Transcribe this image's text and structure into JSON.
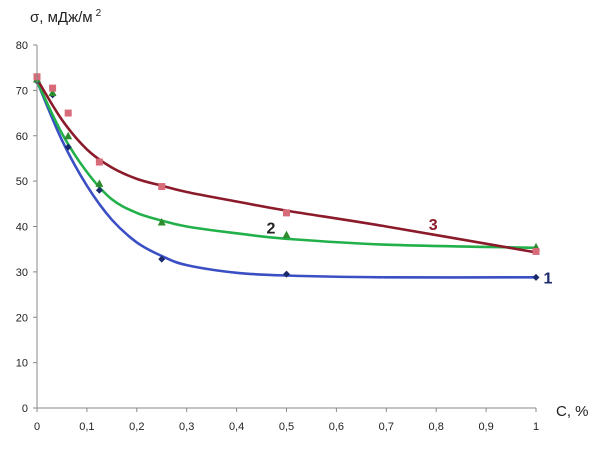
{
  "chart_data": {
    "type": "scatter",
    "ylabel": "σ, мДж/м",
    "ylabel_sup": "2",
    "xlabel": "C, %",
    "xlim": [
      0,
      1
    ],
    "ylim": [
      0,
      80
    ],
    "x_ticks": [
      0,
      0.1,
      0.2,
      0.3,
      0.4,
      0.5,
      0.6,
      0.7,
      0.8,
      0.9,
      1
    ],
    "x_tick_labels": [
      "0",
      "0,1",
      "0,2",
      "0,3",
      "0,4",
      "0,5",
      "0,6",
      "0,7",
      "0,8",
      "0,9",
      "1"
    ],
    "y_ticks": [
      0,
      10,
      20,
      30,
      40,
      50,
      60,
      70,
      80
    ],
    "y_tick_labels": [
      "0",
      "10",
      "20",
      "30",
      "40",
      "50",
      "60",
      "70",
      "80"
    ],
    "grid": false,
    "series": [
      {
        "name": "1",
        "color": "#3b4fc4",
        "marker": "diamond",
        "marker_color": "#1a2a6a",
        "points": [
          [
            0,
            72
          ],
          [
            0.03125,
            69
          ],
          [
            0.0625,
            57.5
          ],
          [
            0.125,
            48
          ],
          [
            0.25,
            32.8
          ],
          [
            0.5,
            29.5
          ],
          [
            1,
            28.8
          ]
        ],
        "curve": [
          [
            0,
            72
          ],
          [
            0.05,
            59
          ],
          [
            0.1,
            49
          ],
          [
            0.15,
            41.5
          ],
          [
            0.2,
            36.5
          ],
          [
            0.25,
            33.5
          ],
          [
            0.3,
            31.5
          ],
          [
            0.4,
            29.8
          ],
          [
            0.5,
            29.2
          ],
          [
            0.7,
            28.8
          ],
          [
            1,
            28.8
          ]
        ]
      },
      {
        "name": "2",
        "color": "#22b04a",
        "marker": "triangle",
        "marker_color": "#2e8b2e",
        "points": [
          [
            0,
            72.5
          ],
          [
            0.03125,
            69.5
          ],
          [
            0.0625,
            60
          ],
          [
            0.125,
            49.5
          ],
          [
            0.25,
            41
          ],
          [
            0.5,
            38.2
          ],
          [
            1,
            35.5
          ]
        ],
        "curve": [
          [
            0,
            72
          ],
          [
            0.05,
            60.5
          ],
          [
            0.1,
            52
          ],
          [
            0.15,
            46
          ],
          [
            0.2,
            43
          ],
          [
            0.25,
            41.3
          ],
          [
            0.3,
            40
          ],
          [
            0.4,
            38.5
          ],
          [
            0.5,
            37.3
          ],
          [
            0.7,
            36
          ],
          [
            1,
            35.3
          ]
        ]
      },
      {
        "name": "3",
        "color": "#8b1a2a",
        "marker": "square",
        "marker_color": "#d86b7a",
        "points": [
          [
            0,
            73
          ],
          [
            0.03125,
            70.5
          ],
          [
            0.0625,
            65
          ],
          [
            0.125,
            54.2
          ],
          [
            0.25,
            48.8
          ],
          [
            0.5,
            43
          ],
          [
            1,
            34.5
          ]
        ],
        "curve": [
          [
            0,
            72.5
          ],
          [
            0.05,
            63.5
          ],
          [
            0.1,
            57
          ],
          [
            0.15,
            53
          ],
          [
            0.2,
            50.5
          ],
          [
            0.25,
            49
          ],
          [
            0.3,
            47.6
          ],
          [
            0.4,
            45.5
          ],
          [
            0.5,
            43.5
          ],
          [
            0.7,
            40
          ],
          [
            1,
            34.3
          ]
        ]
      }
    ],
    "curve_labels": [
      {
        "text": "1",
        "x": 1.015,
        "y": 28.8,
        "color": "#1a2a6a"
      },
      {
        "text": "2",
        "x": 0.46,
        "y": 39.8,
        "color": "#222222"
      },
      {
        "text": "3",
        "x": 0.785,
        "y": 40.5,
        "color": "#8b1a2a"
      }
    ]
  }
}
